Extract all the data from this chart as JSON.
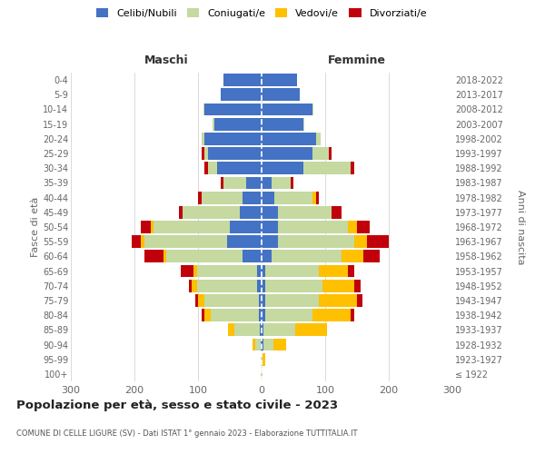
{
  "age_groups": [
    "100+",
    "95-99",
    "90-94",
    "85-89",
    "80-84",
    "75-79",
    "70-74",
    "65-69",
    "60-64",
    "55-59",
    "50-54",
    "45-49",
    "40-44",
    "35-39",
    "30-34",
    "25-29",
    "20-24",
    "15-19",
    "10-14",
    "5-9",
    "0-4"
  ],
  "birth_years": [
    "≤ 1922",
    "1923-1927",
    "1928-1932",
    "1933-1937",
    "1938-1942",
    "1943-1947",
    "1948-1952",
    "1953-1957",
    "1958-1962",
    "1963-1967",
    "1968-1972",
    "1973-1977",
    "1978-1982",
    "1983-1987",
    "1988-1992",
    "1993-1997",
    "1998-2002",
    "2003-2007",
    "2008-2012",
    "2013-2017",
    "2018-2022"
  ],
  "maschi": {
    "celibi": [
      0,
      0,
      2,
      3,
      5,
      5,
      7,
      7,
      30,
      55,
      50,
      35,
      30,
      25,
      70,
      85,
      90,
      75,
      90,
      65,
      60
    ],
    "coniugati": [
      1,
      1,
      8,
      40,
      75,
      85,
      95,
      95,
      120,
      130,
      120,
      90,
      65,
      35,
      15,
      5,
      5,
      2,
      2,
      0,
      0
    ],
    "vedovi": [
      0,
      0,
      5,
      10,
      10,
      10,
      8,
      5,
      5,
      5,
      5,
      0,
      0,
      0,
      0,
      0,
      0,
      0,
      0,
      0,
      0
    ],
    "divorziati": [
      0,
      0,
      0,
      0,
      5,
      5,
      5,
      20,
      30,
      15,
      15,
      5,
      5,
      5,
      5,
      5,
      0,
      0,
      0,
      0,
      0
    ]
  },
  "femmine": {
    "nubili": [
      0,
      0,
      3,
      3,
      5,
      5,
      5,
      5,
      15,
      25,
      25,
      25,
      20,
      15,
      65,
      80,
      85,
      65,
      80,
      60,
      55
    ],
    "coniugate": [
      1,
      2,
      15,
      50,
      75,
      85,
      90,
      85,
      110,
      120,
      110,
      85,
      60,
      30,
      75,
      25,
      8,
      2,
      2,
      0,
      0
    ],
    "vedove": [
      0,
      3,
      20,
      50,
      60,
      60,
      50,
      45,
      35,
      20,
      15,
      0,
      5,
      0,
      0,
      0,
      0,
      0,
      0,
      0,
      0
    ],
    "divorziate": [
      0,
      0,
      0,
      0,
      5,
      8,
      10,
      10,
      25,
      35,
      20,
      15,
      5,
      5,
      5,
      5,
      0,
      0,
      0,
      0,
      0
    ]
  },
  "colors": {
    "celibi_nubili": "#4472c4",
    "coniugati": "#c5d9a0",
    "vedovi": "#ffc000",
    "divorziati": "#c0000b"
  },
  "xlim": 300,
  "title": "Popolazione per età, sesso e stato civile - 2023",
  "subtitle": "COMUNE DI CELLE LIGURE (SV) - Dati ISTAT 1° gennaio 2023 - Elaborazione TUTTITALIA.IT",
  "ylabel_left": "Fasce di età",
  "ylabel_right": "Anni di nascita",
  "xlabel_maschi": "Maschi",
  "xlabel_femmine": "Femmine",
  "legend_labels": [
    "Celibi/Nubili",
    "Coniugati/e",
    "Vedovi/e",
    "Divorziati/e"
  ],
  "bg_color": "#ffffff",
  "grid_color": "#cccccc"
}
